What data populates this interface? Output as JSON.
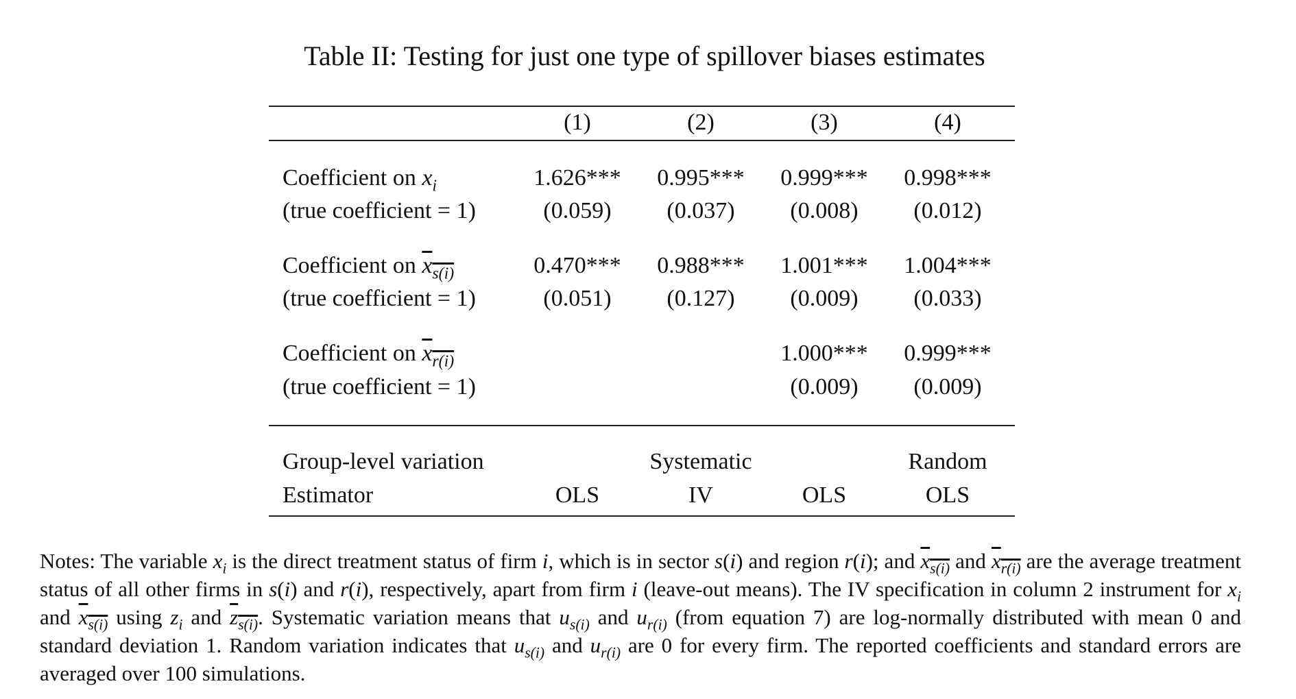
{
  "table": {
    "title": "Table II: Testing for just one type of spillover biases estimates",
    "columns": [
      "(1)",
      "(2)",
      "(3)",
      "(4)"
    ],
    "rows": [
      {
        "label_prefix": "Coefficient on ",
        "label_var": "x",
        "label_sub": "i",
        "label_overline": false,
        "sublabel": "(true coefficient = 1)",
        "coef": [
          "1.626***",
          "0.995***",
          "0.999***",
          "0.998***"
        ],
        "se": [
          "(0.059)",
          "(0.037)",
          "(0.008)",
          "(0.012)"
        ]
      },
      {
        "label_prefix": "Coefficient on ",
        "label_var": "x",
        "label_sub": "s(i)",
        "label_overline": true,
        "sublabel": "(true coefficient = 1)",
        "coef": [
          "0.470***",
          "0.988***",
          "1.001***",
          "1.004***"
        ],
        "se": [
          "(0.051)",
          "(0.127)",
          "(0.009)",
          "(0.033)"
        ]
      },
      {
        "label_prefix": "Coefficient on ",
        "label_var": "x",
        "label_sub": "r(i)",
        "label_overline": true,
        "sublabel": "(true coefficient = 1)",
        "coef": [
          "",
          "",
          "1.000***",
          "0.999***"
        ],
        "se": [
          "",
          "",
          "(0.009)",
          "(0.009)"
        ]
      }
    ],
    "footer": {
      "group_label": "Group-level variation",
      "group_values": [
        "",
        "Systematic",
        "",
        "Random"
      ],
      "estimator_label": "Estimator",
      "estimator_values": [
        "OLS",
        "IV",
        "OLS",
        "OLS"
      ]
    }
  },
  "notes": {
    "p1": "Notes: The variable ",
    "p2": " is the direct treatment status of firm ",
    "p3": ", which is in sector ",
    "p4": " and region ",
    "p5": "; and ",
    "p6": " and ",
    "p7": " are the average treatment status of all other firms in ",
    "p8": " and ",
    "p9": ", respectively, apart from firm ",
    "p10": " (leave-out means). The IV specification in column 2 instrument for ",
    "p11": " and ",
    "p12": " using ",
    "p13": " and ",
    "p14": ". Systematic variation means that ",
    "p15": " and ",
    "p16": " (from equation 7) are log-normally distributed with mean 0 and standard deviation 1. Random variation indicates that ",
    "p17": " and ",
    "p18": " are 0 for every firm. The reported coefficients and standard errors are averaged over 100 simulations."
  }
}
